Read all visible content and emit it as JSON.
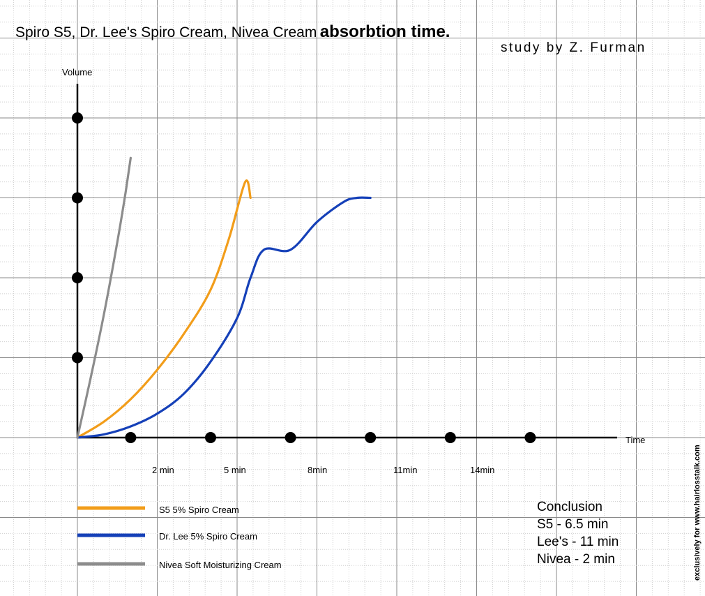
{
  "title": {
    "main": "Spiro S5, Dr. Lee's Spiro Cream, Nivea Cream",
    "bold": "absorbtion time.",
    "subtitle": "study by Z. Furman"
  },
  "axes": {
    "ylabel": "Volume",
    "xlabel": "Time",
    "x_ticks": [
      "2 min",
      "5 min",
      "8min",
      "11min",
      "14min"
    ]
  },
  "legend": [
    {
      "label": "S5 5% Spiro Cream",
      "color": "#f29d1a"
    },
    {
      "label": "Dr. Lee 5% Spiro Cream",
      "color": "#1540b8"
    },
    {
      "label": "Nivea Soft Moisturizing Cream",
      "color": "#8c8c8c"
    }
  ],
  "conclusion": {
    "heading": "Conclusion",
    "lines": [
      "S5 - 6.5 min",
      "Lee's - 11 min",
      "Nivea - 2 min"
    ]
  },
  "watermark": "exclusively for www.hairlosstalk.com",
  "chart_data": {
    "type": "line",
    "title": "Spiro S5, Dr. Lee's Spiro Cream, Nivea Cream absorbtion time.",
    "subtitle": "study by Z. Furman",
    "xlabel": "Time",
    "ylabel": "Volume",
    "x_tick_values": [
      2,
      5,
      8,
      11,
      14,
      17
    ],
    "x_tick_labels": [
      "2 min",
      "5 min",
      "8min",
      "11min",
      "14min",
      ""
    ],
    "y_tick_values": [
      1,
      2,
      3,
      4
    ],
    "xlim": [
      -1,
      20.8
    ],
    "ylim": [
      -0.5,
      4.5
    ],
    "grid": true,
    "legend_position": "bottom-left",
    "series": [
      {
        "name": "S5 5% Spiro Cream",
        "color": "#f29d1a",
        "x": [
          0,
          1,
          2,
          3,
          4,
          5,
          5.7,
          6.3,
          6.5
        ],
        "y": [
          0,
          0.2,
          0.48,
          0.85,
          1.3,
          1.85,
          2.5,
          3.2,
          3.0
        ]
      },
      {
        "name": "Dr. Lee 5% Spiro Cream",
        "color": "#1540b8",
        "x": [
          0,
          1,
          2,
          3,
          4,
          5,
          6,
          6.5,
          7,
          8,
          9,
          10,
          10.5,
          11
        ],
        "y": [
          0,
          0.04,
          0.14,
          0.3,
          0.55,
          0.95,
          1.5,
          2.0,
          2.35,
          2.35,
          2.7,
          2.95,
          3.0,
          3.0
        ]
      },
      {
        "name": "Nivea Soft Moisturizing Cream",
        "color": "#8c8c8c",
        "x": [
          0,
          0.5,
          1,
          1.5,
          1.8,
          2
        ],
        "y": [
          0,
          0.75,
          1.55,
          2.45,
          3.05,
          3.5
        ]
      }
    ]
  }
}
